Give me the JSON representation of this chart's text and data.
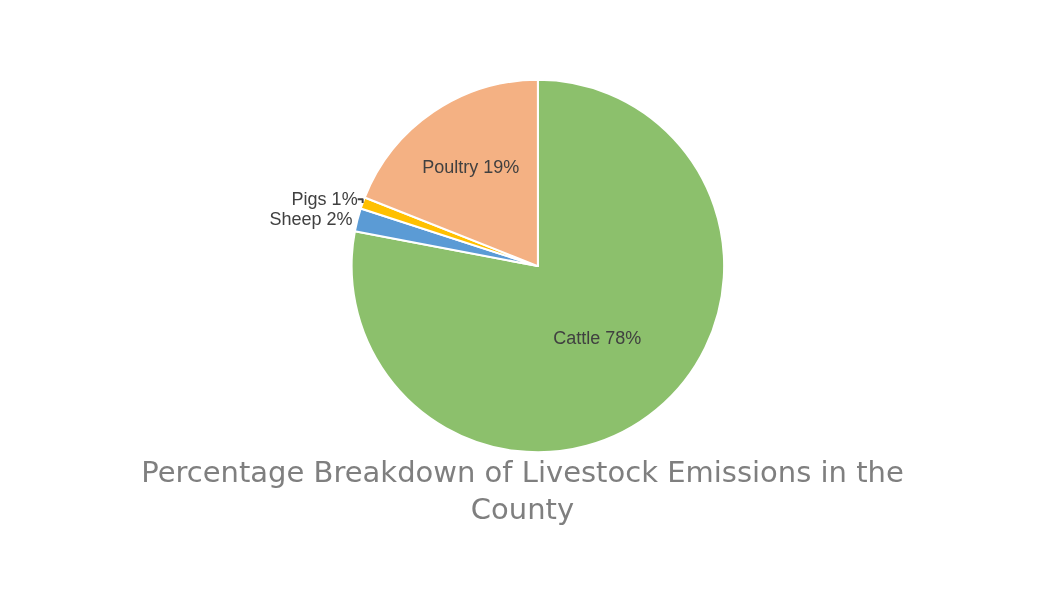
{
  "chart_data": {
    "type": "pie",
    "title": "Percentage Breakdown of Livestock Emissions in the County",
    "categories": [
      "Cattle",
      "Sheep",
      "Pigs",
      "Poultry"
    ],
    "values": [
      78,
      2,
      1,
      19
    ],
    "colors": [
      "#8cc06c",
      "#5b9bd5",
      "#ffc000",
      "#f4b183"
    ],
    "value_labels": [
      "78%",
      "2%",
      "1%",
      "19%"
    ],
    "legend": false
  }
}
